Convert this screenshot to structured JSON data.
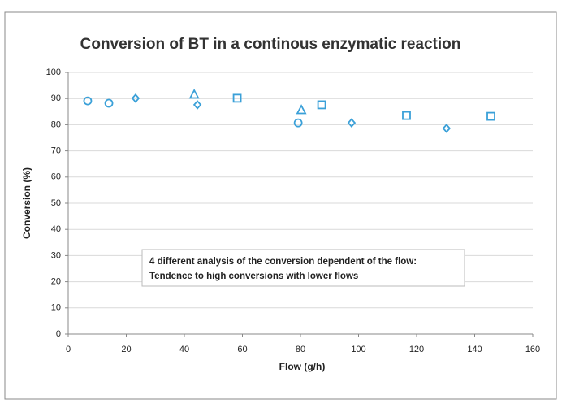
{
  "chart_data": {
    "type": "scatter",
    "title": "Conversion of BT in a continous enzymatic reaction",
    "x_label": "Flow (g/h)",
    "y_label": "Conversion (%)",
    "xlim": [
      0,
      160
    ],
    "ylim": [
      0,
      100
    ],
    "xticks": [
      0,
      20,
      40,
      60,
      80,
      100,
      120,
      140,
      160
    ],
    "yticks": [
      0,
      10,
      20,
      30,
      40,
      50,
      60,
      70,
      80,
      90,
      100
    ],
    "grid": true,
    "series": [
      {
        "marker": "circle",
        "color": "#3aa0d8",
        "x": [
          6.7,
          14.0,
          79.2
        ],
        "values": [
          89.1,
          88.2,
          80.7
        ]
      },
      {
        "marker": "diamond",
        "color": "#3aa0d8",
        "x": [
          23.2,
          44.5,
          97.6,
          130.3
        ],
        "values": [
          90.1,
          87.6,
          80.7,
          78.6
        ]
      },
      {
        "marker": "triangle",
        "color": "#3aa0d8",
        "x": [
          43.4,
          80.3
        ],
        "values": [
          91.3,
          85.4
        ]
      },
      {
        "marker": "square",
        "color": "#3aa0d8",
        "x": [
          58.2,
          87.3,
          116.5,
          145.6
        ],
        "values": [
          90.1,
          87.6,
          83.5,
          83.2
        ]
      }
    ],
    "annotation": [
      "4 different analysis of the conversion dependent of the flow:",
      "Tendence to high conversions with lower flows"
    ]
  }
}
